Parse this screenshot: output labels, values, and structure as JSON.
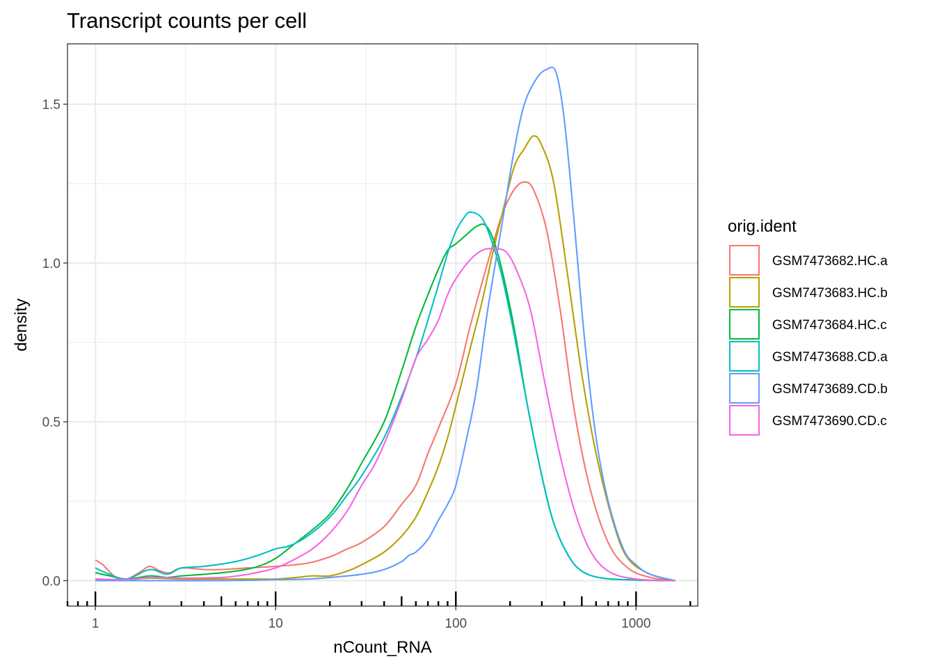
{
  "chart_data": {
    "type": "line",
    "title": "Transcript counts per cell",
    "xlabel": "nCount_RNA",
    "ylabel": "density",
    "x_scale": "log10",
    "xlim": [
      0.7,
      2200
    ],
    "ylim": [
      -0.08,
      1.69
    ],
    "x_ticks": [
      1,
      10,
      100,
      1000
    ],
    "x_tick_labels": [
      "1",
      "10",
      "100",
      "1000"
    ],
    "y_ticks": [
      0,
      0.5,
      1.0,
      1.5
    ],
    "y_tick_labels": [
      "0.0",
      "0.5",
      "1.0",
      "1.5"
    ],
    "grid": true,
    "legend": {
      "title": "orig.ident",
      "position": "right"
    },
    "series": [
      {
        "name": "GSM7473682.HC.a",
        "color": "#F8766D",
        "points": [
          [
            1,
            0.065
          ],
          [
            1.1,
            0.05
          ],
          [
            1.3,
            0.01
          ],
          [
            1.5,
            0.005
          ],
          [
            1.8,
            0.03
          ],
          [
            2,
            0.045
          ],
          [
            2.3,
            0.03
          ],
          [
            2.6,
            0.025
          ],
          [
            3,
            0.04
          ],
          [
            4,
            0.035
          ],
          [
            5,
            0.035
          ],
          [
            7,
            0.04
          ],
          [
            10,
            0.045
          ],
          [
            15,
            0.055
          ],
          [
            20,
            0.075
          ],
          [
            25,
            0.1
          ],
          [
            30,
            0.12
          ],
          [
            40,
            0.17
          ],
          [
            50,
            0.24
          ],
          [
            60,
            0.3
          ],
          [
            70,
            0.4
          ],
          [
            80,
            0.48
          ],
          [
            100,
            0.62
          ],
          [
            120,
            0.8
          ],
          [
            150,
            1.0
          ],
          [
            180,
            1.15
          ],
          [
            210,
            1.23
          ],
          [
            240,
            1.255
          ],
          [
            270,
            1.23
          ],
          [
            320,
            1.1
          ],
          [
            380,
            0.85
          ],
          [
            450,
            0.55
          ],
          [
            550,
            0.3
          ],
          [
            700,
            0.12
          ],
          [
            900,
            0.04
          ],
          [
            1200,
            0.01
          ],
          [
            1650,
            0.0
          ]
        ]
      },
      {
        "name": "GSM7473683.HC.b",
        "color": "#B79F00",
        "points": [
          [
            1,
            0.005
          ],
          [
            1.5,
            0.003
          ],
          [
            2,
            0.008
          ],
          [
            3,
            0.005
          ],
          [
            5,
            0.005
          ],
          [
            8,
            0.005
          ],
          [
            10,
            0.005
          ],
          [
            13,
            0.01
          ],
          [
            16,
            0.015
          ],
          [
            20,
            0.015
          ],
          [
            25,
            0.03
          ],
          [
            30,
            0.05
          ],
          [
            40,
            0.09
          ],
          [
            50,
            0.14
          ],
          [
            60,
            0.2
          ],
          [
            70,
            0.28
          ],
          [
            80,
            0.36
          ],
          [
            90,
            0.45
          ],
          [
            100,
            0.55
          ],
          [
            120,
            0.73
          ],
          [
            140,
            0.88
          ],
          [
            160,
            1.03
          ],
          [
            180,
            1.15
          ],
          [
            210,
            1.3
          ],
          [
            240,
            1.36
          ],
          [
            270,
            1.4
          ],
          [
            300,
            1.37
          ],
          [
            350,
            1.25
          ],
          [
            420,
            0.95
          ],
          [
            500,
            0.65
          ],
          [
            600,
            0.4
          ],
          [
            750,
            0.18
          ],
          [
            900,
            0.07
          ],
          [
            1200,
            0.02
          ],
          [
            1650,
            0.0
          ]
        ]
      },
      {
        "name": "GSM7473684.HC.c",
        "color": "#00BA38",
        "points": [
          [
            1,
            0.025
          ],
          [
            1.2,
            0.015
          ],
          [
            1.5,
            0.005
          ],
          [
            2,
            0.015
          ],
          [
            2.5,
            0.01
          ],
          [
            3,
            0.015
          ],
          [
            4,
            0.02
          ],
          [
            6,
            0.03
          ],
          [
            8,
            0.045
          ],
          [
            10,
            0.07
          ],
          [
            13,
            0.12
          ],
          [
            16,
            0.16
          ],
          [
            20,
            0.21
          ],
          [
            25,
            0.29
          ],
          [
            30,
            0.37
          ],
          [
            40,
            0.5
          ],
          [
            50,
            0.66
          ],
          [
            60,
            0.8
          ],
          [
            70,
            0.9
          ],
          [
            80,
            0.98
          ],
          [
            90,
            1.04
          ],
          [
            100,
            1.06
          ],
          [
            115,
            1.09
          ],
          [
            130,
            1.115
          ],
          [
            145,
            1.12
          ],
          [
            160,
            1.08
          ],
          [
            180,
            0.98
          ],
          [
            210,
            0.8
          ],
          [
            250,
            0.55
          ],
          [
            300,
            0.33
          ],
          [
            350,
            0.18
          ],
          [
            420,
            0.08
          ],
          [
            500,
            0.03
          ],
          [
            650,
            0.008
          ],
          [
            1000,
            0.002
          ],
          [
            1650,
            0.0
          ]
        ]
      },
      {
        "name": "GSM7473688.CD.a",
        "color": "#00BFC4",
        "points": [
          [
            1,
            0.04
          ],
          [
            1.2,
            0.02
          ],
          [
            1.5,
            0.005
          ],
          [
            2,
            0.035
          ],
          [
            2.5,
            0.02
          ],
          [
            3,
            0.04
          ],
          [
            4,
            0.045
          ],
          [
            6,
            0.06
          ],
          [
            8,
            0.08
          ],
          [
            10,
            0.1
          ],
          [
            12,
            0.11
          ],
          [
            15,
            0.14
          ],
          [
            20,
            0.2
          ],
          [
            25,
            0.27
          ],
          [
            30,
            0.33
          ],
          [
            40,
            0.45
          ],
          [
            50,
            0.58
          ],
          [
            60,
            0.7
          ],
          [
            70,
            0.82
          ],
          [
            80,
            0.93
          ],
          [
            90,
            1.03
          ],
          [
            100,
            1.1
          ],
          [
            110,
            1.14
          ],
          [
            120,
            1.16
          ],
          [
            140,
            1.14
          ],
          [
            160,
            1.06
          ],
          [
            180,
            0.96
          ],
          [
            210,
            0.78
          ],
          [
            250,
            0.55
          ],
          [
            300,
            0.33
          ],
          [
            350,
            0.18
          ],
          [
            420,
            0.08
          ],
          [
            500,
            0.03
          ],
          [
            650,
            0.008
          ],
          [
            1000,
            0.002
          ],
          [
            1650,
            0.0
          ]
        ]
      },
      {
        "name": "GSM7473689.CD.b",
        "color": "#619CFF",
        "points": [
          [
            1,
            0.0
          ],
          [
            2,
            0.0
          ],
          [
            5,
            0.0
          ],
          [
            10,
            0.003
          ],
          [
            15,
            0.005
          ],
          [
            20,
            0.01
          ],
          [
            30,
            0.02
          ],
          [
            40,
            0.035
          ],
          [
            50,
            0.06
          ],
          [
            55,
            0.08
          ],
          [
            60,
            0.09
          ],
          [
            70,
            0.13
          ],
          [
            80,
            0.19
          ],
          [
            90,
            0.24
          ],
          [
            100,
            0.3
          ],
          [
            115,
            0.45
          ],
          [
            130,
            0.6
          ],
          [
            150,
            0.85
          ],
          [
            180,
            1.12
          ],
          [
            210,
            1.35
          ],
          [
            240,
            1.5
          ],
          [
            280,
            1.58
          ],
          [
            320,
            1.61
          ],
          [
            360,
            1.6
          ],
          [
            400,
            1.45
          ],
          [
            450,
            1.15
          ],
          [
            520,
            0.75
          ],
          [
            600,
            0.45
          ],
          [
            700,
            0.25
          ],
          [
            850,
            0.1
          ],
          [
            1000,
            0.05
          ],
          [
            1200,
            0.02
          ],
          [
            1650,
            0.0
          ]
        ]
      },
      {
        "name": "GSM7473690.CD.c",
        "color": "#F564E3",
        "points": [
          [
            1,
            0.005
          ],
          [
            1.5,
            0.003
          ],
          [
            2,
            0.01
          ],
          [
            3,
            0.008
          ],
          [
            5,
            0.01
          ],
          [
            7,
            0.02
          ],
          [
            10,
            0.04
          ],
          [
            13,
            0.07
          ],
          [
            16,
            0.1
          ],
          [
            20,
            0.15
          ],
          [
            25,
            0.22
          ],
          [
            30,
            0.3
          ],
          [
            35,
            0.36
          ],
          [
            40,
            0.43
          ],
          [
            50,
            0.57
          ],
          [
            60,
            0.7
          ],
          [
            70,
            0.76
          ],
          [
            80,
            0.82
          ],
          [
            90,
            0.9
          ],
          [
            100,
            0.95
          ],
          [
            120,
            1.01
          ],
          [
            140,
            1.04
          ],
          [
            160,
            1.045
          ],
          [
            190,
            1.035
          ],
          [
            220,
            0.97
          ],
          [
            260,
            0.85
          ],
          [
            310,
            0.63
          ],
          [
            370,
            0.42
          ],
          [
            450,
            0.23
          ],
          [
            550,
            0.1
          ],
          [
            700,
            0.03
          ],
          [
            1000,
            0.005
          ],
          [
            1650,
            0.0
          ]
        ]
      }
    ]
  }
}
